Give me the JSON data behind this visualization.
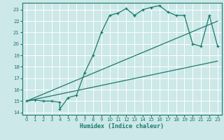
{
  "xlabel": "Humidex (Indice chaleur)",
  "bg_color": "#cce8e8",
  "grid_color": "#ffffff",
  "line_color": "#1a7a6e",
  "xlim": [
    -0.5,
    23.5
  ],
  "ylim": [
    13.8,
    23.6
  ],
  "xticks": [
    0,
    1,
    2,
    3,
    4,
    5,
    6,
    7,
    8,
    9,
    10,
    11,
    12,
    13,
    14,
    15,
    16,
    17,
    18,
    19,
    20,
    21,
    22,
    23
  ],
  "yticks": [
    14,
    15,
    16,
    17,
    18,
    19,
    20,
    21,
    22,
    23
  ],
  "line1_x": [
    0,
    23
  ],
  "line1_y": [
    15.0,
    18.5
  ],
  "line2_x": [
    0,
    23
  ],
  "line2_y": [
    15.0,
    22.0
  ],
  "main_x": [
    0,
    1,
    2,
    3,
    4,
    4,
    5,
    6,
    7,
    8,
    9,
    10,
    11,
    12,
    13,
    13,
    14,
    15,
    16,
    17,
    18,
    19,
    20,
    21,
    22,
    23
  ],
  "main_y": [
    15.0,
    15.1,
    15.0,
    15.0,
    14.9,
    14.3,
    15.3,
    15.5,
    17.5,
    19.0,
    21.0,
    22.5,
    22.7,
    23.1,
    22.5,
    22.5,
    23.0,
    23.2,
    23.35,
    22.8,
    22.5,
    22.5,
    20.0,
    19.8,
    22.5,
    19.8
  ]
}
